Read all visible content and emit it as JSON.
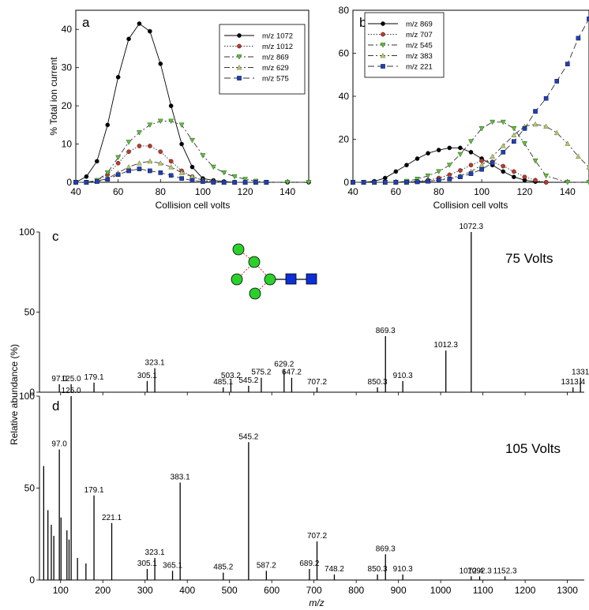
{
  "chart_data": [
    {
      "type": "line",
      "panel_label": "a",
      "xlabel": "Collision cell volts",
      "ylabel": "% Total ion current",
      "xlim": [
        40,
        150
      ],
      "ylim": [
        0,
        45
      ],
      "x_ticks": [
        40,
        60,
        80,
        100,
        120,
        140
      ],
      "y_ticks": [
        0,
        10,
        20,
        30,
        40
      ],
      "legend_position": "top-right",
      "series": [
        {
          "name": "m/z 1072",
          "style": "solid",
          "marker": "circle",
          "color": "#000000",
          "x": [
            40,
            45,
            50,
            55,
            60,
            65,
            70,
            75,
            80,
            85,
            90,
            95,
            100,
            105,
            110,
            115,
            120,
            125,
            130,
            140,
            150
          ],
          "y": [
            0,
            1.5,
            5.5,
            15,
            27.5,
            37.5,
            41.5,
            39.5,
            31,
            20,
            10,
            4,
            1,
            0.5,
            0.2,
            0,
            0,
            0,
            0,
            0,
            0
          ]
        },
        {
          "name": "m/z 1012",
          "style": "dotted",
          "marker": "circle",
          "color": "#c0392b",
          "x": [
            40,
            45,
            50,
            55,
            60,
            65,
            70,
            75,
            80,
            85,
            90,
            95,
            100,
            105,
            110,
            115,
            120,
            125,
            130
          ],
          "y": [
            0,
            0,
            0.5,
            2,
            5,
            8,
            9.5,
            9.5,
            8,
            5.5,
            3,
            1.5,
            0.5,
            0.2,
            0,
            0,
            0,
            0,
            0
          ]
        },
        {
          "name": "m/z 869",
          "style": "dashdot",
          "marker": "triangle-down",
          "color": "#5fbf3c",
          "x": [
            40,
            45,
            50,
            55,
            60,
            65,
            70,
            75,
            80,
            85,
            90,
            95,
            100,
            105,
            110,
            115,
            120,
            125,
            130,
            140,
            150
          ],
          "y": [
            0,
            0,
            0.5,
            2.5,
            6.5,
            10.5,
            13,
            15,
            16,
            16,
            15,
            11,
            7,
            4,
            2.5,
            1.5,
            0.8,
            0.3,
            0,
            0,
            0
          ]
        },
        {
          "name": "m/z 629",
          "style": "dashdot",
          "marker": "triangle-up",
          "color": "#b5c77a",
          "x": [
            40,
            45,
            50,
            55,
            60,
            65,
            70,
            75,
            80,
            85,
            90,
            95,
            100,
            105,
            110,
            115,
            120,
            125,
            130
          ],
          "y": [
            0,
            0,
            0.3,
            1,
            2.5,
            4,
            5,
            5.5,
            5,
            4,
            2.5,
            1.5,
            0.5,
            0.2,
            0,
            0,
            0,
            0,
            0
          ]
        },
        {
          "name": "m/z 575",
          "style": "dashed",
          "marker": "square",
          "color": "#1f3fbf",
          "x": [
            40,
            45,
            50,
            55,
            60,
            65,
            70,
            75,
            80,
            85,
            90,
            95,
            100,
            105,
            110,
            115,
            120,
            125,
            130
          ],
          "y": [
            0,
            0,
            0.2,
            0.8,
            2,
            3,
            3.5,
            3,
            2.5,
            1.8,
            1,
            0.5,
            0.2,
            0,
            0,
            0,
            0,
            0,
            0
          ]
        }
      ]
    },
    {
      "type": "line",
      "panel_label": "b",
      "xlabel": "Collision cell volts",
      "ylabel": "",
      "xlim": [
        40,
        150
      ],
      "ylim": [
        0,
        80
      ],
      "x_ticks": [
        40,
        60,
        80,
        100,
        120,
        140
      ],
      "y_ticks": [
        0,
        20,
        40,
        60,
        80
      ],
      "legend_position": "top-left",
      "series": [
        {
          "name": "m/z 869",
          "style": "solid",
          "marker": "circle",
          "color": "#000000",
          "x": [
            40,
            45,
            50,
            55,
            60,
            65,
            70,
            75,
            80,
            85,
            90,
            95,
            100,
            105,
            110,
            115,
            120,
            125,
            130
          ],
          "y": [
            0,
            0,
            0.5,
            2,
            5,
            8,
            11,
            13.5,
            15,
            16,
            16,
            14,
            11,
            8,
            5,
            2.5,
            1,
            0.3,
            0
          ]
        },
        {
          "name": "m/z 707",
          "style": "dotted",
          "marker": "circle",
          "color": "#c0392b",
          "x": [
            40,
            45,
            50,
            55,
            60,
            65,
            70,
            75,
            80,
            85,
            90,
            95,
            100,
            105,
            110,
            115,
            120,
            125,
            130
          ],
          "y": [
            0,
            0,
            0,
            0,
            0,
            0.3,
            0.5,
            1,
            2,
            3.5,
            5.5,
            8,
            10,
            9.5,
            7.5,
            5,
            2.5,
            1,
            0
          ]
        },
        {
          "name": "m/z 545",
          "style": "dashdot",
          "marker": "triangle-down",
          "color": "#5fbf3c",
          "x": [
            40,
            45,
            50,
            55,
            60,
            65,
            70,
            75,
            80,
            85,
            90,
            95,
            100,
            105,
            110,
            115,
            120,
            125,
            130,
            140,
            150
          ],
          "y": [
            0,
            0,
            0,
            0,
            0,
            0.5,
            1.5,
            3,
            5,
            8,
            13,
            19,
            25,
            28,
            28,
            25,
            18,
            10,
            3,
            0,
            0
          ]
        },
        {
          "name": "m/z 383",
          "style": "dashdot",
          "marker": "triangle-up",
          "color": "#b5c77a",
          "x": [
            40,
            45,
            50,
            55,
            60,
            65,
            70,
            75,
            80,
            85,
            90,
            95,
            100,
            105,
            110,
            115,
            120,
            125,
            130,
            135,
            140,
            145,
            150
          ],
          "y": [
            0,
            0,
            0,
            0,
            0,
            0,
            0.3,
            0.5,
            1,
            2,
            3,
            5,
            8,
            12,
            17,
            22,
            26,
            27,
            26,
            23,
            18,
            12,
            7
          ]
        },
        {
          "name": "m/z 221",
          "style": "dashed",
          "marker": "square",
          "color": "#1f3fbf",
          "x": [
            40,
            45,
            50,
            55,
            60,
            65,
            70,
            75,
            80,
            85,
            90,
            95,
            100,
            105,
            110,
            115,
            120,
            125,
            130,
            135,
            140,
            145,
            150
          ],
          "y": [
            0,
            0,
            0,
            0,
            0,
            0,
            0.2,
            0.5,
            1,
            1.5,
            2.5,
            4,
            6,
            9,
            14,
            19,
            25,
            33,
            39,
            47,
            55,
            67,
            76
          ]
        }
      ]
    },
    {
      "type": "bar",
      "panel_label": "c",
      "annotation": "75 Volts",
      "xlabel": "m/z",
      "ylabel": "Relative abundance (%)",
      "xlim": [
        50,
        1340
      ],
      "ylim": [
        0,
        100
      ],
      "x_ticks": [
        100,
        200,
        300,
        400,
        500,
        600,
        700,
        800,
        900,
        1000,
        1100,
        1200,
        1300
      ],
      "y_ticks": [
        0,
        50,
        100
      ],
      "peaks": [
        {
          "mz": 97.0,
          "intensity": 5,
          "label": "97.0"
        },
        {
          "mz": 125.0,
          "intensity": 5,
          "label": "125.0"
        },
        {
          "mz": 179.1,
          "intensity": 6,
          "label": "179.1"
        },
        {
          "mz": 305.1,
          "intensity": 7,
          "label": "305.1"
        },
        {
          "mz": 323.1,
          "intensity": 15,
          "label": "323.1"
        },
        {
          "mz": 485.1,
          "intensity": 3,
          "label": "485.1"
        },
        {
          "mz": 503.2,
          "intensity": 7,
          "label": "503.2"
        },
        {
          "mz": 545.2,
          "intensity": 4,
          "label": "545.2"
        },
        {
          "mz": 575.2,
          "intensity": 9,
          "label": "575.2"
        },
        {
          "mz": 629.2,
          "intensity": 14,
          "label": "629.2"
        },
        {
          "mz": 647.2,
          "intensity": 9,
          "label": "647.2"
        },
        {
          "mz": 707.2,
          "intensity": 3,
          "label": "707.2"
        },
        {
          "mz": 850.3,
          "intensity": 3,
          "label": "850.3"
        },
        {
          "mz": 869.3,
          "intensity": 35,
          "label": "869.3"
        },
        {
          "mz": 910.3,
          "intensity": 7,
          "label": "910.3"
        },
        {
          "mz": 1012.3,
          "intensity": 26,
          "label": "1012.3"
        },
        {
          "mz": 1072.3,
          "intensity": 100,
          "label": "1072.3"
        },
        {
          "mz": 1313.4,
          "intensity": 3,
          "label": "1313.4"
        },
        {
          "mz": 1331,
          "intensity": 9,
          "label": "1331"
        }
      ]
    },
    {
      "type": "bar",
      "panel_label": "d",
      "annotation": "105 Volts",
      "xlabel": "m/z",
      "ylabel": "Relative abundance (%)",
      "xlim": [
        50,
        1340
      ],
      "ylim": [
        0,
        100
      ],
      "x_ticks": [
        100,
        200,
        300,
        400,
        500,
        600,
        700,
        800,
        900,
        1000,
        1100,
        1200,
        1300
      ],
      "y_ticks": [
        0,
        50,
        100
      ],
      "peaks": [
        {
          "mz": 97.0,
          "intensity": 71,
          "label": "97.0"
        },
        {
          "mz": 125.0,
          "intensity": 100,
          "label": "125.0"
        },
        {
          "mz": 179.1,
          "intensity": 46,
          "label": "179.1"
        },
        {
          "mz": 221.1,
          "intensity": 31,
          "label": "221.1"
        },
        {
          "mz": 305.1,
          "intensity": 6,
          "label": "305.1"
        },
        {
          "mz": 323.1,
          "intensity": 12,
          "label": "323.1"
        },
        {
          "mz": 365.1,
          "intensity": 5,
          "label": "365.1"
        },
        {
          "mz": 383.1,
          "intensity": 53,
          "label": "383.1"
        },
        {
          "mz": 485.2,
          "intensity": 4,
          "label": "485.2"
        },
        {
          "mz": 545.2,
          "intensity": 75,
          "label": "545.2"
        },
        {
          "mz": 587.2,
          "intensity": 5,
          "label": "587.2"
        },
        {
          "mz": 689.2,
          "intensity": 6,
          "label": "689.2"
        },
        {
          "mz": 707.2,
          "intensity": 21,
          "label": "707.2"
        },
        {
          "mz": 748.2,
          "intensity": 3,
          "label": "748.2"
        },
        {
          "mz": 850.3,
          "intensity": 3,
          "label": "850.3"
        },
        {
          "mz": 869.3,
          "intensity": 14,
          "label": "869.3"
        },
        {
          "mz": 910.3,
          "intensity": 3,
          "label": "910.3"
        },
        {
          "mz": 1072.4,
          "intensity": 2,
          "label": "1072.4"
        },
        {
          "mz": 1092.3,
          "intensity": 2,
          "label": "1092.3"
        },
        {
          "mz": 1152.3,
          "intensity": 2,
          "label": "1152.3"
        },
        {
          "mz": 60,
          "intensity": 62,
          "label": ""
        },
        {
          "mz": 70,
          "intensity": 38,
          "label": ""
        },
        {
          "mz": 78,
          "intensity": 30,
          "label": ""
        },
        {
          "mz": 84,
          "intensity": 24,
          "label": ""
        },
        {
          "mz": 101,
          "intensity": 34,
          "label": ""
        },
        {
          "mz": 115,
          "intensity": 27,
          "label": ""
        },
        {
          "mz": 120,
          "intensity": 22,
          "label": ""
        },
        {
          "mz": 140,
          "intensity": 12,
          "label": ""
        },
        {
          "mz": 160,
          "intensity": 9,
          "label": ""
        }
      ]
    }
  ]
}
